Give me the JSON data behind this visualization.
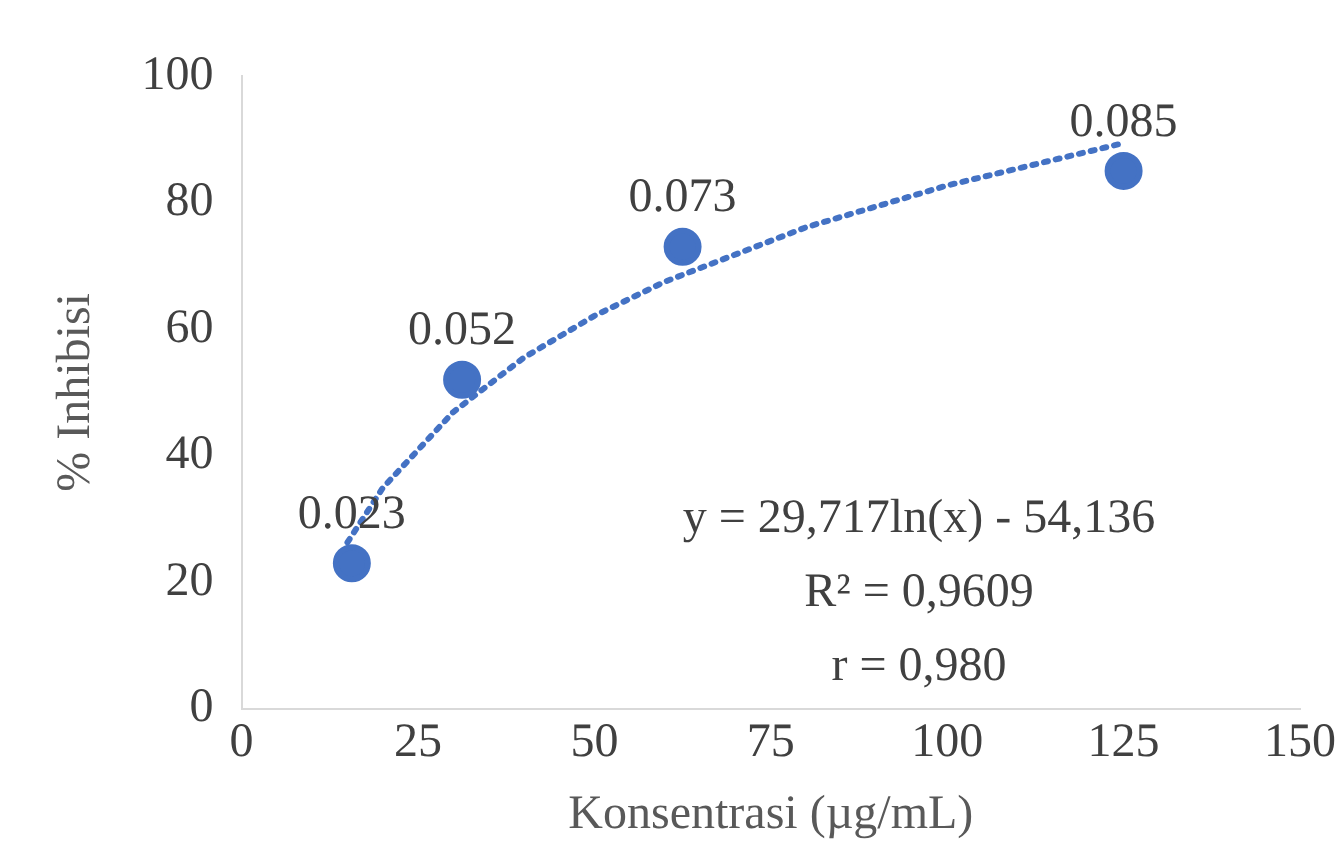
{
  "chart_data": {
    "type": "scatter",
    "xlabel": "Konsentrasi (µg/mL)",
    "ylabel": "% Inhibisi",
    "xlim": [
      0,
      150
    ],
    "xticks": [
      0,
      25,
      50,
      75,
      100,
      125,
      150
    ],
    "ylim": [
      0,
      100
    ],
    "yticks": [
      0,
      20,
      40,
      60,
      80,
      100
    ],
    "grid": false,
    "legend": false,
    "marker": "circle",
    "series": [
      {
        "color": "#4472c4",
        "x": [
          15.625,
          31.25,
          62.5,
          125
        ],
        "values": [
          23,
          52,
          73,
          85
        ]
      },
      {
        "type": "line",
        "color": "#4472c4",
        "line_style": "dotted",
        "marker": "none",
        "x": [
          15,
          20,
          30,
          40,
          50,
          60,
          80,
          100,
          125
        ],
        "values": [
          26.3,
          34.9,
          46.9,
          55.5,
          62.1,
          67.5,
          76.1,
          82.7,
          89.4
        ]
      }
    ],
    "annotations": [
      {
        "text": "0.023",
        "x": 15.625,
        "y": 23
      },
      {
        "text": "0.052",
        "x": 31.25,
        "y": 52
      },
      {
        "text": "0.073",
        "x": 62.5,
        "y": 73
      },
      {
        "text": "0.085",
        "x": 125,
        "y": 85
      },
      "y = 29,717ln(x) - 54,136",
      "R² = 0,9609",
      "r = 0,980"
    ]
  }
}
